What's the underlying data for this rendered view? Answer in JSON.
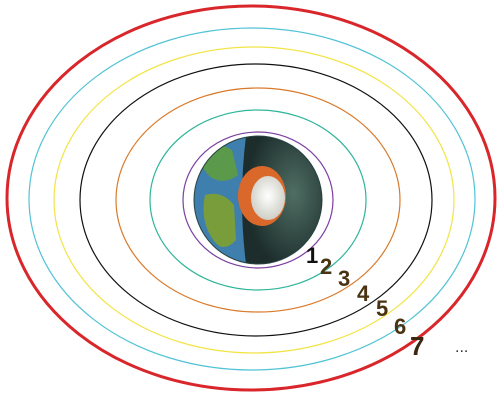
{
  "diagram": {
    "ring_colors": [
      "#7b3fa0",
      "#2fb59a",
      "#d97a2a",
      "#111111",
      "#f2e447",
      "#52c3d6",
      "#d9262b"
    ],
    "earth": {
      "icon": "earth-cutaway-icon",
      "ocean_color": "#3f7fae",
      "land_color": "#5a9a4a",
      "mantle_color": "#223a38",
      "outer_core_color": "#d9682a",
      "inner_core_color": "#e8e8e0"
    },
    "labels": [
      "1",
      "2",
      "3",
      "4",
      "5",
      "6",
      "7"
    ],
    "label_colors": [
      "#111111",
      "#4a3312",
      "#4a3312",
      "#4a3312",
      "#4a3312",
      "#4a3312",
      "#3a2810"
    ],
    "ellipsis": "..."
  }
}
